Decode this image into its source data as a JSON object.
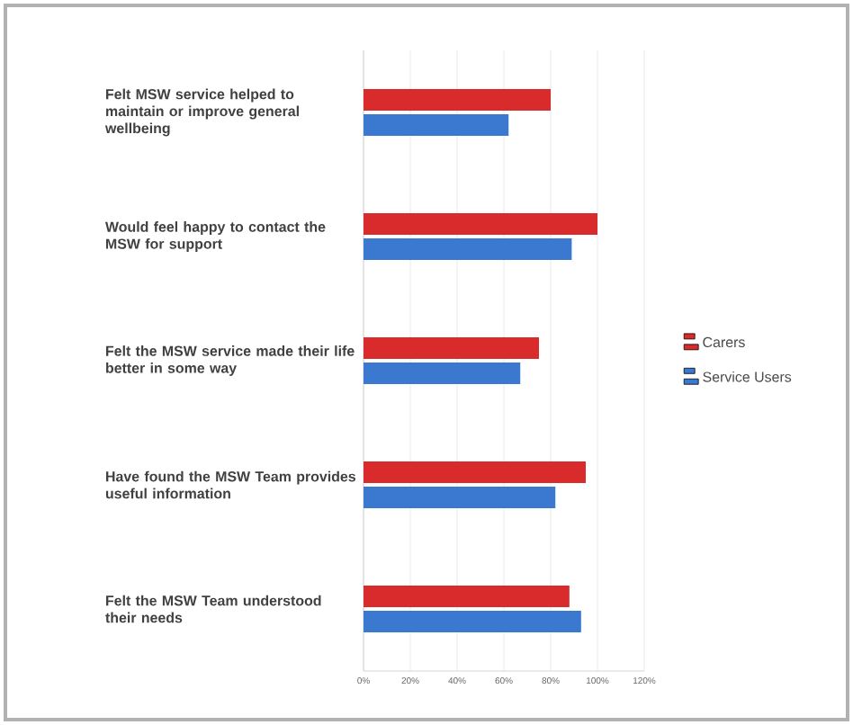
{
  "chart_data": {
    "type": "bar",
    "orientation": "horizontal",
    "categories": [
      "Felt MSW service helped to maintain or improve general wellbeing",
      "Would feel happy to contact the MSW for support",
      "Felt the MSW service made their life better in some way",
      "Have found the MSW Team provides useful information",
      "Felt the MSW Team understood their needs"
    ],
    "series": [
      {
        "name": "Carers",
        "color": "#d92b2b",
        "values": [
          80,
          100,
          75,
          95,
          88
        ]
      },
      {
        "name": "Service Users",
        "color": "#3b78d0",
        "values": [
          62,
          89,
          67,
          82,
          93
        ]
      }
    ],
    "xlim": [
      0,
      120
    ],
    "xticks": [
      {
        "value": 0,
        "label": "0%"
      },
      {
        "value": 20,
        "label": "20%"
      },
      {
        "value": 40,
        "label": "40%"
      },
      {
        "value": 60,
        "label": "60%"
      },
      {
        "value": 80,
        "label": "80%"
      },
      {
        "value": 100,
        "label": "100%"
      },
      {
        "value": 120,
        "label": "120%"
      }
    ],
    "grid": "x",
    "legend": "right"
  }
}
